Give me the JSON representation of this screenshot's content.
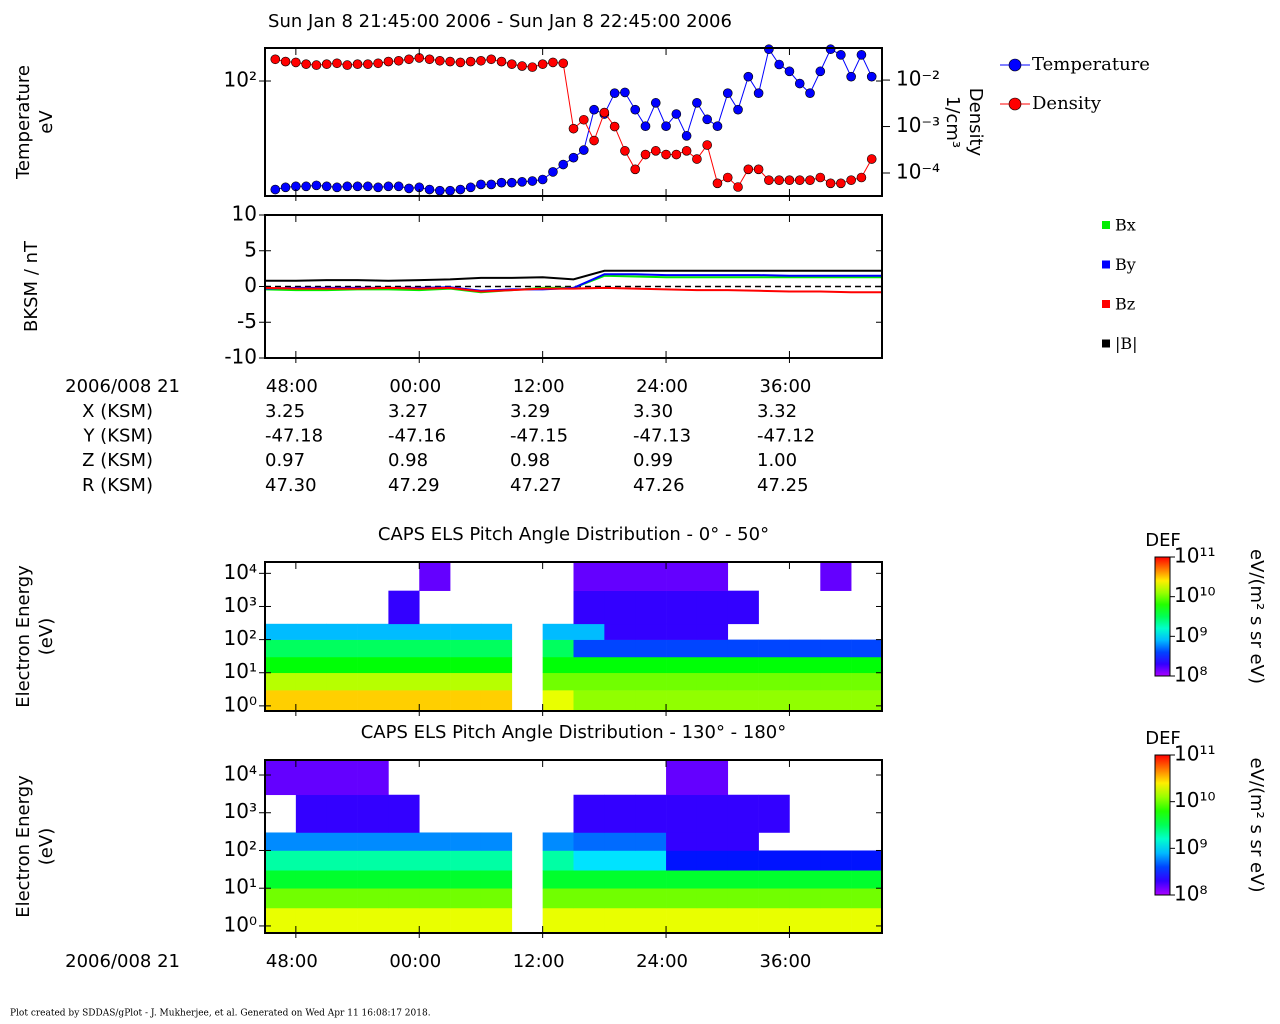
{
  "title": "Sun Jan 8 21:45:00 2006 - Sun Jan 8 22:45:00 2006",
  "chart_data": [
    {
      "type": "line",
      "y_label": "Temperature",
      "y_unit": "eV",
      "y2_label": "Density",
      "y2_unit": "1/cm³",
      "markers": true,
      "ylog": true,
      "y2log": true,
      "xlim": [
        45,
        105
      ],
      "xticks": [
        48,
        60,
        72,
        84,
        96
      ],
      "ylim": [
        0.8,
        400
      ],
      "yticks": [
        {
          "value": 100,
          "label": "10²"
        }
      ],
      "y2lim": [
        3.2e-05,
        0.049
      ],
      "y2ticks": [
        {
          "value": 0.01,
          "label": "10⁻²"
        },
        {
          "value": 0.001,
          "label": "10⁻³"
        },
        {
          "value": 0.0001,
          "label": "10⁻⁴"
        }
      ],
      "x": [
        46,
        47,
        48,
        49,
        50,
        51,
        52,
        53,
        54,
        55,
        56,
        57,
        58,
        59,
        60,
        61,
        62,
        63,
        64,
        65,
        66,
        67,
        68,
        69,
        70,
        71,
        72,
        73,
        74,
        75,
        76,
        77,
        78,
        79,
        80,
        81,
        82,
        83,
        84,
        85,
        86,
        87,
        88,
        89,
        90,
        91,
        92,
        93,
        94,
        95,
        96,
        97,
        98,
        99,
        100,
        101,
        102,
        103,
        104
      ],
      "series": [
        {
          "name": "Temperature",
          "color": "#0000ff",
          "values": [
            1.05,
            1.15,
            1.2,
            1.2,
            1.25,
            1.2,
            1.15,
            1.2,
            1.2,
            1.2,
            1.15,
            1.2,
            1.2,
            1.1,
            1.15,
            1.05,
            1.0,
            1.0,
            1.05,
            1.15,
            1.3,
            1.3,
            1.4,
            1.4,
            1.45,
            1.5,
            1.6,
            2.2,
            3.0,
            4.0,
            5.5,
            30,
            25,
            60,
            62,
            30,
            15,
            40,
            15,
            25,
            10,
            40,
            20,
            15,
            60,
            30,
            120,
            60,
            380,
            200,
            150,
            90,
            60,
            150,
            380,
            300,
            120,
            300,
            120
          ]
        },
        {
          "name": "Density",
          "color": "#ff0000",
          "axis": "y2",
          "values": [
            0.028,
            0.025,
            0.024,
            0.022,
            0.021,
            0.022,
            0.023,
            0.021,
            0.022,
            0.022,
            0.023,
            0.025,
            0.026,
            0.028,
            0.03,
            0.028,
            0.026,
            0.025,
            0.024,
            0.025,
            0.026,
            0.028,
            0.025,
            0.022,
            0.02,
            0.019,
            0.022,
            0.024,
            0.023,
            0.0009,
            0.0014,
            0.0005,
            0.002,
            0.001,
            0.0003,
            0.00012,
            0.00025,
            0.0003,
            0.00025,
            0.00025,
            0.0003,
            0.0002,
            0.0004,
            6e-05,
            8e-05,
            5e-05,
            0.00012,
            0.00012,
            7e-05,
            7e-05,
            7e-05,
            7e-05,
            7e-05,
            8e-05,
            6e-05,
            6e-05,
            7e-05,
            8e-05,
            0.0002
          ]
        }
      ]
    },
    {
      "type": "line",
      "y_label": "BKSM / nT",
      "markers": false,
      "x_label": "2006/008 21",
      "xlim": [
        45,
        105
      ],
      "xticks": [
        {
          "value": 48,
          "label": "48:00"
        },
        {
          "value": 60,
          "label": "00:00"
        },
        {
          "value": 72,
          "label": "12:00"
        },
        {
          "value": 84,
          "label": "24:00"
        },
        {
          "value": 96,
          "label": "36:00"
        }
      ],
      "ylim": [
        -10,
        10
      ],
      "yticks": [
        -10,
        -5,
        0,
        5,
        10
      ],
      "x": [
        45,
        48,
        51,
        54,
        57,
        60,
        63,
        66,
        69,
        72,
        75,
        78,
        81,
        84,
        87,
        90,
        93,
        96,
        99,
        102,
        105
      ],
      "series": [
        {
          "name": "Bx",
          "color": "#00ee00",
          "values": [
            -0.4,
            -0.5,
            -0.5,
            -0.4,
            -0.4,
            -0.5,
            -0.3,
            -0.8,
            -0.5,
            -0.2,
            -0.2,
            1.5,
            1.4,
            1.3,
            1.3,
            1.3,
            1.3,
            1.3,
            1.3,
            1.3,
            1.3
          ]
        },
        {
          "name": "By",
          "color": "#0000ff",
          "values": [
            -0.3,
            -0.2,
            -0.2,
            -0.2,
            -0.2,
            -0.2,
            -0.1,
            -0.6,
            -0.4,
            -0.4,
            -0.2,
            1.7,
            1.7,
            1.6,
            1.6,
            1.6,
            1.6,
            1.5,
            1.5,
            1.5,
            1.5
          ]
        },
        {
          "name": "Bz",
          "color": "#ff0000",
          "values": [
            -0.2,
            -0.3,
            -0.3,
            -0.3,
            -0.2,
            -0.3,
            -0.2,
            -0.7,
            -0.5,
            -0.3,
            -0.3,
            -0.2,
            -0.3,
            -0.4,
            -0.5,
            -0.5,
            -0.6,
            -0.7,
            -0.7,
            -0.8,
            -0.8
          ]
        },
        {
          "name": "|B|",
          "color": "#000000",
          "values": [
            0.8,
            0.8,
            0.9,
            0.9,
            0.8,
            0.9,
            1.0,
            1.2,
            1.2,
            1.3,
            1.0,
            2.2,
            2.2,
            2.2,
            2.2,
            2.2,
            2.2,
            2.2,
            2.2,
            2.2,
            2.2
          ]
        }
      ]
    },
    {
      "type": "heatmap",
      "title": "CAPS ELS Pitch Angle Distribution - 0° - 50°",
      "y_label": "Electron Energy",
      "y_unit": "(eV)",
      "ylog": true,
      "xlim": [
        45,
        105
      ],
      "xticks": [
        48,
        60,
        72,
        84,
        96
      ],
      "ylim": [
        0.7,
        22000
      ],
      "yticks": [
        {
          "value": 1,
          "label": "10⁰"
        },
        {
          "value": 10,
          "label": "10¹"
        },
        {
          "value": 100,
          "label": "10²"
        },
        {
          "value": 1000,
          "label": "10³"
        },
        {
          "value": 10000,
          "label": "10⁴"
        }
      ],
      "colorbar_title": "DEF",
      "colorbar_unit": "eV/(m² s sr eV)",
      "zlim": [
        100000000,
        100000000000
      ],
      "zticks": [
        {
          "value": 100000000000,
          "label": "10¹¹"
        },
        {
          "value": 10000000000,
          "label": "10¹⁰"
        },
        {
          "value": 1000000000,
          "label": "10⁹"
        },
        {
          "value": 100000000,
          "label": "10⁸"
        }
      ],
      "x_bins": [
        45,
        48,
        51,
        54,
        57,
        60,
        63,
        66,
        69,
        72,
        75,
        78,
        81,
        84,
        87,
        90,
        93,
        96,
        99,
        102,
        105
      ],
      "y_bins": [
        0.7,
        3,
        10,
        30,
        100,
        300,
        3000,
        22000
      ],
      "values": [
        [
          30000000000.0,
          30000000000.0,
          30000000000.0,
          30000000000.0,
          30000000000.0,
          30000000000.0,
          30000000000.0,
          30000000000.0,
          null,
          20000000000.0,
          12000000000.0,
          12000000000.0,
          12000000000.0,
          12000000000.0,
          12000000000.0,
          12000000000.0,
          12000000000.0,
          12000000000.0,
          12000000000.0,
          12000000000.0
        ],
        [
          15000000000.0,
          15000000000.0,
          15000000000.0,
          15000000000.0,
          15000000000.0,
          15000000000.0,
          15000000000.0,
          15000000000.0,
          null,
          10000000000.0,
          10000000000.0,
          10000000000.0,
          10000000000.0,
          10000000000.0,
          10000000000.0,
          10000000000.0,
          10000000000.0,
          10000000000.0,
          10000000000.0,
          10000000000.0
        ],
        [
          5000000000.0,
          5000000000.0,
          5000000000.0,
          5000000000.0,
          5000000000.0,
          5000000000.0,
          5000000000.0,
          5000000000.0,
          null,
          5000000000.0,
          5000000000.0,
          5000000000.0,
          5000000000.0,
          5000000000.0,
          5000000000.0,
          5000000000.0,
          5000000000.0,
          5000000000.0,
          5000000000.0,
          5000000000.0
        ],
        [
          3000000000.0,
          3000000000.0,
          3000000000.0,
          3000000000.0,
          3000000000.0,
          3000000000.0,
          3000000000.0,
          3000000000.0,
          null,
          3000000000.0,
          400000000.0,
          400000000.0,
          400000000.0,
          400000000.0,
          400000000.0,
          400000000.0,
          400000000.0,
          400000000.0,
          400000000.0,
          400000000.0
        ],
        [
          800000000.0,
          800000000.0,
          800000000.0,
          800000000.0,
          800000000.0,
          800000000.0,
          800000000.0,
          800000000.0,
          null,
          800000000.0,
          800000000.0,
          200000000.0,
          200000000.0,
          200000000.0,
          200000000.0,
          null,
          null,
          null,
          null,
          null
        ],
        [
          null,
          null,
          null,
          null,
          200000000.0,
          null,
          null,
          null,
          null,
          null,
          200000000.0,
          200000000.0,
          200000000.0,
          200000000.0,
          200000000.0,
          200000000.0,
          null,
          null,
          null,
          null
        ],
        [
          null,
          null,
          null,
          null,
          null,
          150000000.0,
          null,
          null,
          null,
          null,
          150000000.0,
          150000000.0,
          150000000.0,
          150000000.0,
          150000000.0,
          null,
          null,
          null,
          150000000.0,
          null
        ]
      ]
    },
    {
      "type": "heatmap",
      "title": "CAPS ELS Pitch Angle Distribution - 130° - 180°",
      "y_label": "Electron Energy",
      "y_unit": "(eV)",
      "x_label": "2006/008 21",
      "ylog": true,
      "xlim": [
        45,
        105
      ],
      "xticks": [
        {
          "value": 48,
          "label": "48:00"
        },
        {
          "value": 60,
          "label": "00:00"
        },
        {
          "value": 72,
          "label": "12:00"
        },
        {
          "value": 84,
          "label": "24:00"
        },
        {
          "value": 96,
          "label": "36:00"
        }
      ],
      "ylim": [
        0.65,
        25000
      ],
      "yticks": [
        {
          "value": 1,
          "label": "10⁰"
        },
        {
          "value": 10,
          "label": "10¹"
        },
        {
          "value": 100,
          "label": "10²"
        },
        {
          "value": 1000,
          "label": "10³"
        },
        {
          "value": 10000,
          "label": "10⁴"
        }
      ],
      "colorbar_title": "DEF",
      "colorbar_unit": "eV/(m² s sr eV)",
      "zlim": [
        100000000,
        100000000000
      ],
      "zticks": [
        {
          "value": 100000000000,
          "label": "10¹¹"
        },
        {
          "value": 10000000000,
          "label": "10¹⁰"
        },
        {
          "value": 1000000000,
          "label": "10⁹"
        },
        {
          "value": 100000000,
          "label": "10⁸"
        }
      ],
      "x_bins": [
        45,
        48,
        51,
        54,
        57,
        60,
        63,
        66,
        69,
        72,
        75,
        78,
        81,
        84,
        87,
        90,
        93,
        96,
        99,
        102,
        105
      ],
      "y_bins": [
        0.65,
        3,
        10,
        30,
        100,
        300,
        3000,
        25000
      ],
      "values": [
        [
          20000000000.0,
          20000000000.0,
          20000000000.0,
          20000000000.0,
          20000000000.0,
          20000000000.0,
          20000000000.0,
          20000000000.0,
          null,
          20000000000.0,
          20000000000.0,
          20000000000.0,
          20000000000.0,
          20000000000.0,
          20000000000.0,
          20000000000.0,
          20000000000.0,
          20000000000.0,
          20000000000.0,
          20000000000.0
        ],
        [
          10000000000.0,
          10000000000.0,
          10000000000.0,
          10000000000.0,
          10000000000.0,
          10000000000.0,
          10000000000.0,
          10000000000.0,
          null,
          10000000000.0,
          10000000000.0,
          10000000000.0,
          10000000000.0,
          10000000000.0,
          10000000000.0,
          10000000000.0,
          10000000000.0,
          10000000000.0,
          10000000000.0,
          10000000000.0
        ],
        [
          4000000000.0,
          4000000000.0,
          4000000000.0,
          4000000000.0,
          4000000000.0,
          4000000000.0,
          4000000000.0,
          4000000000.0,
          null,
          4000000000.0,
          4000000000.0,
          4000000000.0,
          4000000000.0,
          4000000000.0,
          4000000000.0,
          4000000000.0,
          4000000000.0,
          4000000000.0,
          4000000000.0,
          4000000000.0
        ],
        [
          2000000000.0,
          2000000000.0,
          2000000000.0,
          2000000000.0,
          2000000000.0,
          2000000000.0,
          2000000000.0,
          2000000000.0,
          null,
          2000000000.0,
          1000000000.0,
          1000000000.0,
          1000000000.0,
          300000000.0,
          300000000.0,
          300000000.0,
          300000000.0,
          300000000.0,
          300000000.0,
          300000000.0
        ],
        [
          600000000.0,
          600000000.0,
          600000000.0,
          600000000.0,
          600000000.0,
          600000000.0,
          600000000.0,
          600000000.0,
          null,
          600000000.0,
          500000000.0,
          500000000.0,
          500000000.0,
          200000000.0,
          200000000.0,
          200000000.0,
          null,
          null,
          null,
          null
        ],
        [
          null,
          200000000.0,
          200000000.0,
          200000000.0,
          200000000.0,
          null,
          null,
          null,
          null,
          null,
          200000000.0,
          200000000.0,
          200000000.0,
          200000000.0,
          200000000.0,
          200000000.0,
          200000000.0,
          null,
          null,
          null
        ],
        [
          150000000.0,
          150000000.0,
          150000000.0,
          150000000.0,
          null,
          null,
          null,
          null,
          null,
          null,
          null,
          null,
          null,
          150000000.0,
          150000000.0,
          null,
          null,
          null,
          null,
          null
        ]
      ]
    }
  ],
  "ephemeris": [
    {
      "label": "X (KSM)",
      "values": [
        "3.25",
        "3.27",
        "3.29",
        "3.30",
        "3.32"
      ]
    },
    {
      "label": "Y (KSM)",
      "values": [
        "-47.18",
        "-47.16",
        "-47.15",
        "-47.13",
        "-47.12"
      ]
    },
    {
      "label": "Z (KSM)",
      "values": [
        "0.97",
        "0.98",
        "0.98",
        "0.99",
        "1.00"
      ]
    },
    {
      "label": "R (KSM)",
      "values": [
        "47.30",
        "47.29",
        "47.27",
        "47.26",
        "47.25"
      ]
    }
  ],
  "footer": "Plot created by SDDAS/gPlot - J. Mukherjee, et al.  Generated on Wed Apr 11 16:08:17 2018."
}
